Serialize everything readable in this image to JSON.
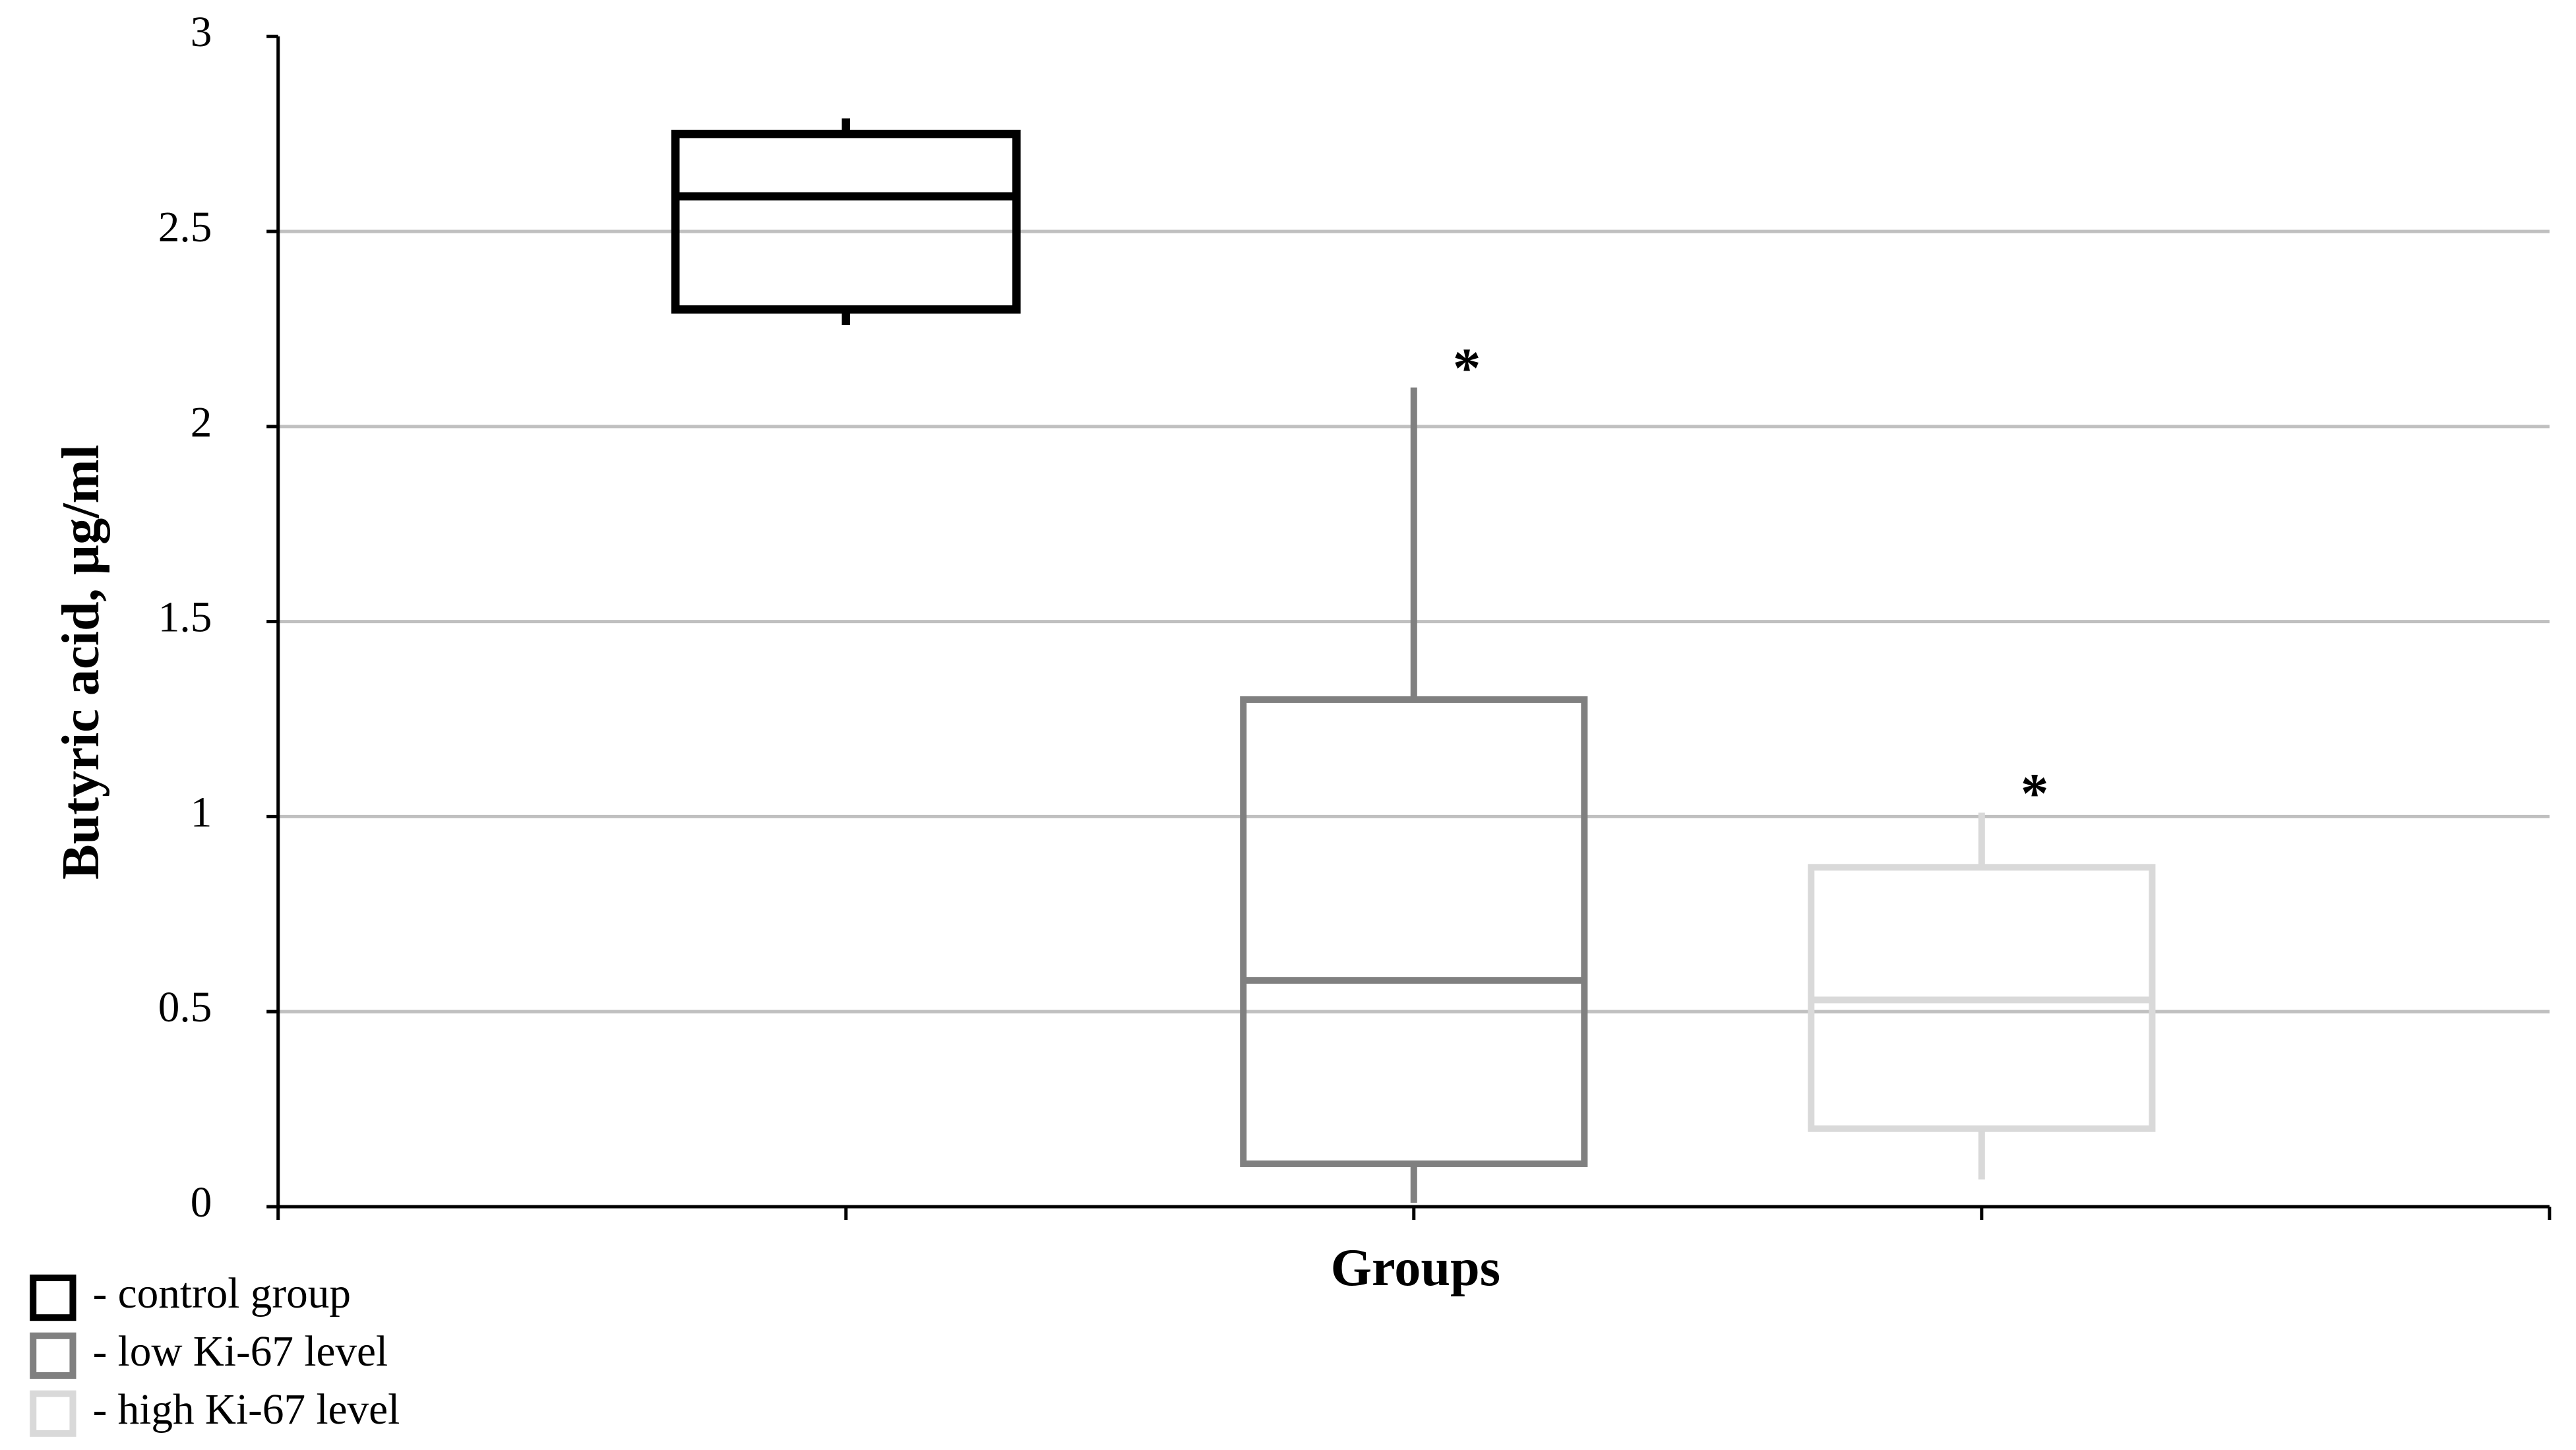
{
  "chart_data": {
    "type": "box",
    "ylabel": "Butyric acid, µg/ml",
    "xlabel": "Groups",
    "categories": [
      null,
      null,
      null
    ],
    "ylim": [
      0,
      3
    ],
    "yticks": [
      0,
      0.5,
      1,
      1.5,
      2,
      2.5,
      3
    ],
    "grid": true,
    "legend": "bottom-left",
    "series": [
      {
        "name": "- control group",
        "color": "#000000",
        "min": 2.26,
        "q1": 2.3,
        "median": 2.59,
        "q3": 2.75,
        "max": 2.79
      },
      {
        "name": "- low Ki-67 level",
        "color": "#808080",
        "min": 0.01,
        "q1": 0.11,
        "median": 0.58,
        "q3": 1.3,
        "max": 2.1,
        "annotation": "*"
      },
      {
        "name": "- high Ki-67 level",
        "color": "#d9d9d9",
        "min": 0.07,
        "q1": 0.2,
        "median": 0.53,
        "q3": 0.87,
        "max": 1.01,
        "annotation": "*"
      }
    ]
  }
}
